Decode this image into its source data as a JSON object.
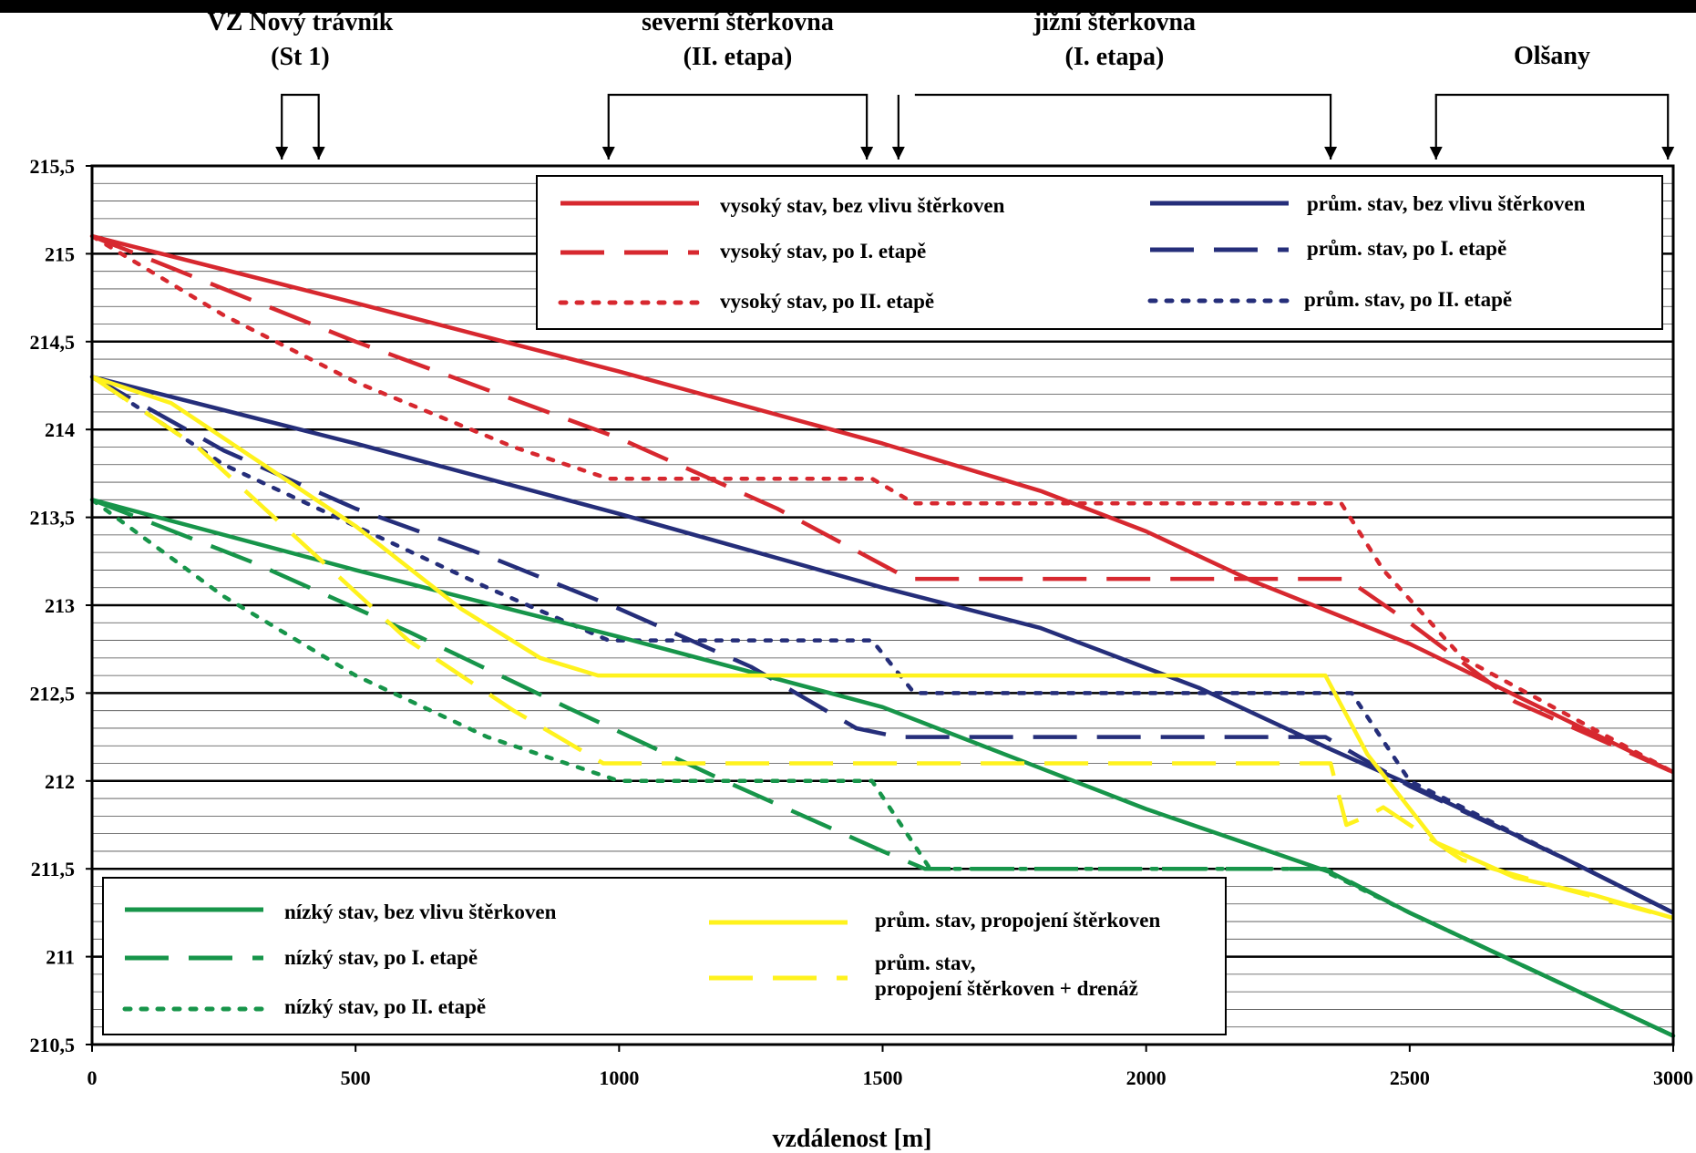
{
  "chart_data": {
    "type": "line",
    "title": "",
    "xlabel": "vzdálenost [m]",
    "ylabel": "",
    "xlim": [
      0,
      3000
    ],
    "ylim": [
      210.5,
      215.5
    ],
    "x_ticks": [
      "0",
      "500",
      "1000",
      "1500",
      "2000",
      "2500",
      "3000"
    ],
    "y_ticks": [
      "215,5",
      "215",
      "214,5",
      "214",
      "213,5",
      "213",
      "212,5",
      "212",
      "211,5",
      "211",
      "210,5"
    ],
    "grid": "horizontal",
    "legend_top_position": "top-right",
    "legend_bottom_position": "bottom-left",
    "regions": [
      {
        "label": [
          "VZ Nový trávník",
          "(St 1)"
        ],
        "x_start": 360,
        "x_end": 430
      },
      {
        "label": [
          "severní štěrkovna",
          "(II. etapa)"
        ],
        "x_start": 980,
        "x_end": 1470
      },
      {
        "label": [
          "jižní štěrkovna",
          "(I. etapa)"
        ],
        "x_start": 1530,
        "x_end": 2350
      },
      {
        "label": [
          "Olšany"
        ],
        "x_start": 2550,
        "x_end": 2990
      }
    ],
    "colors": {
      "red": "#d7282f",
      "navy": "#252e7a",
      "green": "#17954a",
      "yellow": "#fff21d"
    },
    "series": [
      {
        "name": "vysoký stav, bez vlivu štěrkoven",
        "color": "#d7282f",
        "style": "solid",
        "x": [
          0,
          500,
          1000,
          1500,
          1800,
          2000,
          2200,
          2500,
          3000
        ],
        "y": [
          215.1,
          214.72,
          214.33,
          213.92,
          213.65,
          213.42,
          213.14,
          212.78,
          212.05
        ]
      },
      {
        "name": "vysoký stav, po I. etapě",
        "color": "#d7282f",
        "style": "dashed",
        "x": [
          0,
          500,
          1000,
          1300,
          1550,
          2380,
          2500,
          2700,
          3000
        ],
        "y": [
          215.1,
          214.5,
          213.95,
          213.55,
          213.15,
          213.15,
          212.9,
          212.45,
          212.05
        ]
      },
      {
        "name": "vysoký stav, po II. etapě",
        "color": "#d7282f",
        "style": "dotted",
        "x": [
          0,
          250,
          500,
          800,
          980,
          1480,
          1560,
          2370,
          2450,
          2600,
          3000
        ],
        "y": [
          215.1,
          214.65,
          214.27,
          213.9,
          213.72,
          213.72,
          213.58,
          213.58,
          213.2,
          212.7,
          212.05
        ]
      },
      {
        "name": "prům. stav, bez vlivu štěrkoven",
        "color": "#252e7a",
        "style": "solid",
        "x": [
          0,
          500,
          1000,
          1500,
          1800,
          2100,
          2350,
          2500,
          2800,
          3000
        ],
        "y": [
          214.3,
          213.92,
          213.52,
          213.1,
          212.87,
          212.53,
          212.18,
          211.98,
          211.55,
          211.25
        ]
      },
      {
        "name": "prům. stav, po I. etapě",
        "color": "#252e7a",
        "style": "dashed",
        "x": [
          0,
          250,
          500,
          750,
          1000,
          1250,
          1450,
          1530,
          2340,
          2500,
          2800,
          3000
        ],
        "y": [
          214.3,
          213.88,
          213.55,
          213.28,
          212.98,
          212.65,
          212.3,
          212.25,
          212.25,
          211.97,
          211.55,
          211.25
        ]
      },
      {
        "name": "prům. stav, po II. etapě",
        "color": "#252e7a",
        "style": "dotted",
        "x": [
          0,
          250,
          500,
          750,
          980,
          1480,
          1560,
          2390,
          2500,
          2800,
          3000
        ],
        "y": [
          214.3,
          213.8,
          213.45,
          213.1,
          212.8,
          212.8,
          212.5,
          212.5,
          212.0,
          211.55,
          211.25
        ]
      },
      {
        "name": "nízký stav, bez vlivu štěrkoven",
        "color": "#17954a",
        "style": "solid",
        "x": [
          0,
          500,
          1000,
          1500,
          2000,
          2350,
          2500,
          2700,
          3000
        ],
        "y": [
          213.6,
          213.2,
          212.82,
          212.42,
          211.84,
          211.48,
          211.25,
          210.97,
          210.55
        ]
      },
      {
        "name": "nízký stav, po I. etapě",
        "color": "#17954a",
        "style": "dashed",
        "x": [
          0,
          300,
          600,
          900,
          1200,
          1500,
          1580,
          2340,
          2500,
          3000
        ],
        "y": [
          213.6,
          213.25,
          212.85,
          212.42,
          212.0,
          211.6,
          211.5,
          211.5,
          211.25,
          210.55
        ]
      },
      {
        "name": "nízký stav, po II. etapě",
        "color": "#17954a",
        "style": "dotted",
        "x": [
          0,
          250,
          500,
          750,
          1000,
          1480,
          1590,
          2330,
          2500,
          3000
        ],
        "y": [
          213.6,
          213.05,
          212.6,
          212.25,
          212.0,
          212.0,
          211.5,
          211.5,
          211.25,
          210.55
        ]
      },
      {
        "name": "prům. stav, propojení štěrkoven",
        "color": "#fff21d",
        "style": "solid",
        "x": [
          0,
          150,
          300,
          500,
          700,
          850,
          960,
          2340,
          2420,
          2550,
          2700,
          2850,
          3000
        ],
        "y": [
          214.3,
          214.15,
          213.85,
          213.45,
          212.98,
          212.7,
          212.6,
          212.6,
          212.15,
          211.65,
          211.45,
          211.35,
          211.22
        ]
      },
      {
        "name": "prům. stav, propojení štěrkoven + drenáž",
        "color": "#fff21d",
        "style": "dashed",
        "x": [
          0,
          200,
          400,
          600,
          800,
          970,
          2350,
          2360,
          2380,
          2420,
          2450,
          2500,
          2600,
          2800,
          3000
        ],
        "y": [
          214.3,
          213.9,
          213.35,
          212.8,
          212.4,
          212.1,
          212.1,
          211.98,
          211.75,
          211.8,
          211.85,
          211.75,
          211.55,
          211.38,
          211.22
        ]
      }
    ],
    "legend_top_items": [
      0,
      3,
      1,
      4,
      2,
      5
    ],
    "legend_bottom_items": [
      6,
      9,
      7,
      10,
      8
    ]
  }
}
